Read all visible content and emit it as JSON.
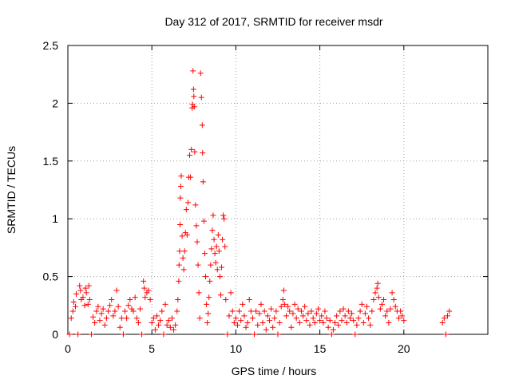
{
  "chart_data": {
    "type": "scatter",
    "title": "Day 312 of 2017, SRMTID for receiver msdr",
    "xlabel": "GPS time / hours",
    "ylabel": "SRMTID / TECUs",
    "xlim": [
      0,
      25
    ],
    "ylim": [
      0,
      2.5
    ],
    "x_ticks": [
      0,
      5,
      10,
      15,
      20
    ],
    "y_ticks": [
      0,
      0.5,
      1,
      1.5,
      2,
      2.5
    ],
    "x_tick_labels": [
      "0",
      "5",
      "10",
      "15",
      "20"
    ],
    "y_tick_labels": [
      "0",
      "0.5",
      "1",
      "1.5",
      "2",
      "2.5"
    ],
    "grid": true,
    "marker": "+",
    "marker_color": "#ff0000",
    "series": [
      {
        "name": "SRMTID",
        "points": [
          [
            0.1,
            0.0
          ],
          [
            0.2,
            0.14
          ],
          [
            0.3,
            0.2
          ],
          [
            0.35,
            0.28
          ],
          [
            0.45,
            0.24
          ],
          [
            0.5,
            0.35
          ],
          [
            0.6,
            0.0
          ],
          [
            0.7,
            0.42
          ],
          [
            0.75,
            0.38
          ],
          [
            0.8,
            0.3
          ],
          [
            0.9,
            0.32
          ],
          [
            1.0,
            0.25
          ],
          [
            1.05,
            0.4
          ],
          [
            1.1,
            0.36
          ],
          [
            1.2,
            0.26
          ],
          [
            1.25,
            0.42
          ],
          [
            1.3,
            0.3
          ],
          [
            1.4,
            0.0
          ],
          [
            1.5,
            0.15
          ],
          [
            1.6,
            0.1
          ],
          [
            1.7,
            0.2
          ],
          [
            1.8,
            0.24
          ],
          [
            1.9,
            0.12
          ],
          [
            2.0,
            0.18
          ],
          [
            2.1,
            0.22
          ],
          [
            2.2,
            0.08
          ],
          [
            2.3,
            0.14
          ],
          [
            2.4,
            0.2
          ],
          [
            2.5,
            0.25
          ],
          [
            2.6,
            0.3
          ],
          [
            2.7,
            0.16
          ],
          [
            2.8,
            0.2
          ],
          [
            2.9,
            0.38
          ],
          [
            3.0,
            0.24
          ],
          [
            3.1,
            0.06
          ],
          [
            3.2,
            0.14
          ],
          [
            3.3,
            0.0
          ],
          [
            3.4,
            0.2
          ],
          [
            3.5,
            0.14
          ],
          [
            3.6,
            0.25
          ],
          [
            3.7,
            0.3
          ],
          [
            3.8,
            0.22
          ],
          [
            3.9,
            0.2
          ],
          [
            4.0,
            0.32
          ],
          [
            4.1,
            0.14
          ],
          [
            4.2,
            0.1
          ],
          [
            4.3,
            0.22
          ],
          [
            4.4,
            0.0
          ],
          [
            4.5,
            0.46
          ],
          [
            4.55,
            0.4
          ],
          [
            4.6,
            0.32
          ],
          [
            4.7,
            0.36
          ],
          [
            4.8,
            0.38
          ],
          [
            4.9,
            0.3
          ],
          [
            5.0,
            0.1
          ],
          [
            5.1,
            0.14
          ],
          [
            5.2,
            0.04
          ],
          [
            5.3,
            0.16
          ],
          [
            5.4,
            0.08
          ],
          [
            5.5,
            0.12
          ],
          [
            5.6,
            0.2
          ],
          [
            5.7,
            0.0
          ],
          [
            5.8,
            0.26
          ],
          [
            5.9,
            0.08
          ],
          [
            6.0,
            0.12
          ],
          [
            6.1,
            0.06
          ],
          [
            6.2,
            0.14
          ],
          [
            6.3,
            0.04
          ],
          [
            6.4,
            0.08
          ],
          [
            6.5,
            0.2
          ],
          [
            6.55,
            0.3
          ],
          [
            6.6,
            0.46
          ],
          [
            6.62,
            0.6
          ],
          [
            6.65,
            0.72
          ],
          [
            6.68,
            0.95
          ],
          [
            6.7,
            1.18
          ],
          [
            6.72,
            1.28
          ],
          [
            6.75,
            1.37
          ],
          [
            6.8,
            0.85
          ],
          [
            6.85,
            0.66
          ],
          [
            6.9,
            0.56
          ],
          [
            6.95,
            0.72
          ],
          [
            7.0,
            0.88
          ],
          [
            7.05,
            1.08
          ],
          [
            7.1,
            0.86
          ],
          [
            7.15,
            1.14
          ],
          [
            7.2,
            1.36
          ],
          [
            7.25,
            1.55
          ],
          [
            7.3,
            1.36
          ],
          [
            7.35,
            1.6
          ],
          [
            7.4,
            1.96
          ],
          [
            7.42,
            1.99
          ],
          [
            7.45,
            2.28
          ],
          [
            7.48,
            2.12
          ],
          [
            7.5,
            2.06
          ],
          [
            7.52,
            1.97
          ],
          [
            7.55,
            1.58
          ],
          [
            7.6,
            1.12
          ],
          [
            7.65,
            0.94
          ],
          [
            7.7,
            0.8
          ],
          [
            7.75,
            0.6
          ],
          [
            7.8,
            0.36
          ],
          [
            7.85,
            0.14
          ],
          [
            7.9,
            2.26
          ],
          [
            7.95,
            2.05
          ],
          [
            8.0,
            1.81
          ],
          [
            8.02,
            1.57
          ],
          [
            8.05,
            1.32
          ],
          [
            8.1,
            0.98
          ],
          [
            8.15,
            0.7
          ],
          [
            8.2,
            0.5
          ],
          [
            8.25,
            0.26
          ],
          [
            8.3,
            0.1
          ],
          [
            8.35,
            0.18
          ],
          [
            8.4,
            0.32
          ],
          [
            8.45,
            0.46
          ],
          [
            8.5,
            0.6
          ],
          [
            8.55,
            0.74
          ],
          [
            8.6,
            0.9
          ],
          [
            8.65,
            1.03
          ],
          [
            8.7,
            0.82
          ],
          [
            8.75,
            0.7
          ],
          [
            8.8,
            0.62
          ],
          [
            8.85,
            0.76
          ],
          [
            8.9,
            0.56
          ],
          [
            8.95,
            0.86
          ],
          [
            9.0,
            0.72
          ],
          [
            9.05,
            0.5
          ],
          [
            9.1,
            0.34
          ],
          [
            9.15,
            0.58
          ],
          [
            9.2,
            0.82
          ],
          [
            9.25,
            1.03
          ],
          [
            9.3,
            1.0
          ],
          [
            9.35,
            0.76
          ],
          [
            9.4,
            0.3
          ],
          [
            9.5,
            0.0
          ],
          [
            9.6,
            0.16
          ],
          [
            9.7,
            0.36
          ],
          [
            9.8,
            0.2
          ],
          [
            9.9,
            0.1
          ],
          [
            10.0,
            0.14
          ],
          [
            10.1,
            0.08
          ],
          [
            10.2,
            0.2
          ],
          [
            10.3,
            0.12
          ],
          [
            10.4,
            0.26
          ],
          [
            10.5,
            0.16
          ],
          [
            10.6,
            0.06
          ],
          [
            10.7,
            0.1
          ],
          [
            10.8,
            0.3
          ],
          [
            10.9,
            0.2
          ],
          [
            11.0,
            0.14
          ],
          [
            11.1,
            0.0
          ],
          [
            11.2,
            0.2
          ],
          [
            11.3,
            0.08
          ],
          [
            11.4,
            0.18
          ],
          [
            11.5,
            0.26
          ],
          [
            11.6,
            0.1
          ],
          [
            11.7,
            0.2
          ],
          [
            11.8,
            0.04
          ],
          [
            11.9,
            0.16
          ],
          [
            12.0,
            0.12
          ],
          [
            12.1,
            0.22
          ],
          [
            12.2,
            0.06
          ],
          [
            12.3,
            0.14
          ],
          [
            12.4,
            0.2
          ],
          [
            12.5,
            0.0
          ],
          [
            12.6,
            0.1
          ],
          [
            12.7,
            0.24
          ],
          [
            12.8,
            0.3
          ],
          [
            12.85,
            0.38
          ],
          [
            12.9,
            0.26
          ],
          [
            13.0,
            0.16
          ],
          [
            13.1,
            0.24
          ],
          [
            13.2,
            0.2
          ],
          [
            13.3,
            0.06
          ],
          [
            13.4,
            0.18
          ],
          [
            13.5,
            0.26
          ],
          [
            13.6,
            0.14
          ],
          [
            13.7,
            0.22
          ],
          [
            13.8,
            0.1
          ],
          [
            13.9,
            0.2
          ],
          [
            14.0,
            0.16
          ],
          [
            14.1,
            0.24
          ],
          [
            14.2,
            0.12
          ],
          [
            14.3,
            0.18
          ],
          [
            14.4,
            0.08
          ],
          [
            14.5,
            0.2
          ],
          [
            14.6,
            0.14
          ],
          [
            14.7,
            0.1
          ],
          [
            14.8,
            0.18
          ],
          [
            14.9,
            0.22
          ],
          [
            15.0,
            0.12
          ],
          [
            15.1,
            0.16
          ],
          [
            15.2,
            0.1
          ],
          [
            15.3,
            0.2
          ],
          [
            15.4,
            0.14
          ],
          [
            15.5,
            0.06
          ],
          [
            15.6,
            0.12
          ],
          [
            15.7,
            0.0
          ],
          [
            15.8,
            0.04
          ],
          [
            15.9,
            0.1
          ],
          [
            16.0,
            0.16
          ],
          [
            16.1,
            0.08
          ],
          [
            16.2,
            0.2
          ],
          [
            16.3,
            0.12
          ],
          [
            16.4,
            0.22
          ],
          [
            16.5,
            0.16
          ],
          [
            16.6,
            0.1
          ],
          [
            16.7,
            0.2
          ],
          [
            16.8,
            0.14
          ],
          [
            16.9,
            0.18
          ],
          [
            17.0,
            0.12
          ],
          [
            17.1,
            0.0
          ],
          [
            17.2,
            0.08
          ],
          [
            17.3,
            0.14
          ],
          [
            17.4,
            0.2
          ],
          [
            17.5,
            0.26
          ],
          [
            17.6,
            0.1
          ],
          [
            17.7,
            0.18
          ],
          [
            17.8,
            0.24
          ],
          [
            17.9,
            0.14
          ],
          [
            18.0,
            0.08
          ],
          [
            18.1,
            0.2
          ],
          [
            18.2,
            0.3
          ],
          [
            18.3,
            0.36
          ],
          [
            18.4,
            0.4
          ],
          [
            18.45,
            0.44
          ],
          [
            18.5,
            0.32
          ],
          [
            18.6,
            0.22
          ],
          [
            18.7,
            0.26
          ],
          [
            18.8,
            0.3
          ],
          [
            18.9,
            0.16
          ],
          [
            19.0,
            0.2
          ],
          [
            19.1,
            0.1
          ],
          [
            19.2,
            0.22
          ],
          [
            19.3,
            0.36
          ],
          [
            19.4,
            0.3
          ],
          [
            19.5,
            0.24
          ],
          [
            19.6,
            0.2
          ],
          [
            19.7,
            0.14
          ],
          [
            19.8,
            0.2
          ],
          [
            19.9,
            0.16
          ],
          [
            20.0,
            0.12
          ],
          [
            22.3,
            0.1
          ],
          [
            22.4,
            0.14
          ],
          [
            22.5,
            0.0
          ],
          [
            22.6,
            0.16
          ],
          [
            22.7,
            0.2
          ]
        ]
      }
    ]
  }
}
